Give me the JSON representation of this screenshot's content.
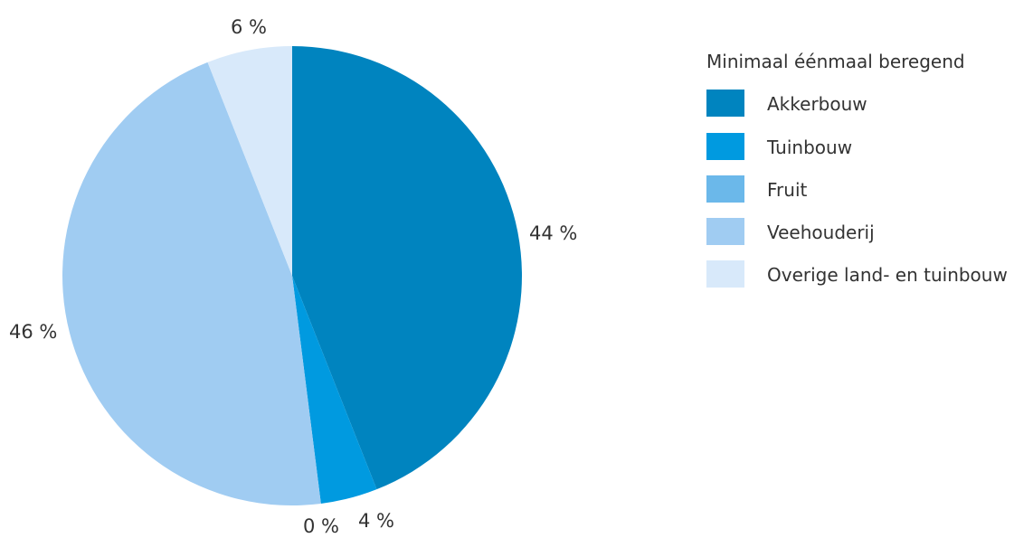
{
  "chart_data": {
    "type": "pie",
    "legend_title": "Minimaal éénmaal beregend",
    "legend_position": "right",
    "categories": [
      "Akkerbouw",
      "Tuinbouw",
      "Fruit",
      "Veehouderij",
      "Overige land- en tuinbouw"
    ],
    "values": [
      44,
      4,
      0,
      46,
      6
    ],
    "value_labels": [
      "44 %",
      "4 %",
      "0 %",
      "46 %",
      "6 %"
    ],
    "colors": [
      "#0084bf",
      "#009ae0",
      "#6bb8ea",
      "#a0ccf2",
      "#d8e9fa"
    ],
    "start": "top",
    "direction": "clockwise"
  }
}
